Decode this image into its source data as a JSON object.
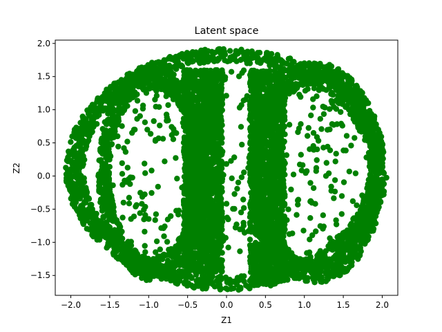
{
  "chart_data": {
    "type": "scatter",
    "title": "Latent space",
    "xlabel": "Z1",
    "ylabel": "Z2",
    "xlim": [
      -2.2,
      2.2
    ],
    "ylim": [
      -1.8,
      2.05
    ],
    "xticks": [
      -2.0,
      -1.5,
      -1.0,
      -0.5,
      0.0,
      0.5,
      1.0,
      1.5,
      2.0
    ],
    "yticks": [
      -1.5,
      -1.0,
      -0.5,
      0.0,
      0.5,
      1.0,
      1.5,
      2.0
    ],
    "xtick_labels": [
      "−2.0",
      "−1.5",
      "−1.0",
      "−0.5",
      "0.0",
      "0.5",
      "1.0",
      "1.5",
      "2.0"
    ],
    "ytick_labels": [
      "−1.5",
      "−1.0",
      "−0.5",
      "0.0",
      "0.5",
      "1.0",
      "1.5",
      "2.0"
    ],
    "grid": false,
    "marker_color": "#008000",
    "series": [
      {
        "points": [
          [
            -2.03,
            0.37
          ],
          [
            -1.73,
            0.8
          ],
          [
            -1.73,
            0.85
          ],
          [
            -1.87,
            -0.45
          ],
          [
            -1.85,
            0.15
          ],
          [
            -1.82,
            -0.28
          ],
          [
            -1.8,
            0.45
          ],
          [
            -1.76,
            0.6
          ],
          [
            -1.7,
            0.9
          ],
          [
            -1.66,
            1.02
          ],
          [
            -1.62,
            1.1
          ],
          [
            -1.55,
            1.22
          ],
          [
            -1.45,
            1.35
          ],
          [
            -1.35,
            1.45
          ],
          [
            -1.25,
            1.52
          ],
          [
            -1.1,
            1.62
          ],
          [
            -0.95,
            1.7
          ],
          [
            -0.8,
            1.75
          ],
          [
            -0.65,
            1.8
          ],
          [
            -0.5,
            1.8
          ],
          [
            -0.35,
            1.78
          ],
          [
            -0.2,
            1.77
          ],
          [
            -0.05,
            1.8
          ],
          [
            0.1,
            1.79
          ],
          [
            0.25,
            1.75
          ],
          [
            0.4,
            1.72
          ],
          [
            0.55,
            1.78
          ],
          [
            0.7,
            1.75
          ],
          [
            0.85,
            1.72
          ],
          [
            1.0,
            1.7
          ],
          [
            1.15,
            1.67
          ],
          [
            1.3,
            1.63
          ],
          [
            1.45,
            1.55
          ],
          [
            1.6,
            1.42
          ],
          [
            1.72,
            1.28
          ],
          [
            1.82,
            1.1
          ],
          [
            1.9,
            0.9
          ],
          [
            1.95,
            0.7
          ],
          [
            1.98,
            0.45
          ],
          [
            2.0,
            0.2
          ],
          [
            2.0,
            -0.05
          ],
          [
            1.98,
            -0.3
          ],
          [
            1.93,
            -0.55
          ],
          [
            1.85,
            -0.78
          ],
          [
            1.75,
            -0.98
          ],
          [
            1.62,
            -1.15
          ],
          [
            1.48,
            -1.28
          ],
          [
            1.3,
            -1.38
          ],
          [
            1.1,
            -1.46
          ],
          [
            0.9,
            -1.52
          ],
          [
            0.7,
            -1.55
          ],
          [
            0.5,
            -1.55
          ],
          [
            0.3,
            -1.58
          ],
          [
            0.1,
            -1.6
          ],
          [
            -0.1,
            -1.6
          ],
          [
            -0.3,
            -1.56
          ],
          [
            -0.5,
            -1.52
          ],
          [
            -0.7,
            -1.45
          ],
          [
            -0.9,
            -1.38
          ],
          [
            -1.1,
            -1.28
          ],
          [
            -1.3,
            -1.14
          ],
          [
            -1.45,
            -0.98
          ],
          [
            -1.58,
            -0.8
          ],
          [
            -1.7,
            -0.58
          ],
          [
            -1.8,
            -0.35
          ],
          [
            -1.85,
            -0.1
          ],
          [
            -1.84,
            0.3
          ],
          [
            -1.6,
            0.2
          ],
          [
            -1.5,
            -0.2
          ],
          [
            -1.4,
            0.6
          ]
        ]
      }
    ]
  }
}
